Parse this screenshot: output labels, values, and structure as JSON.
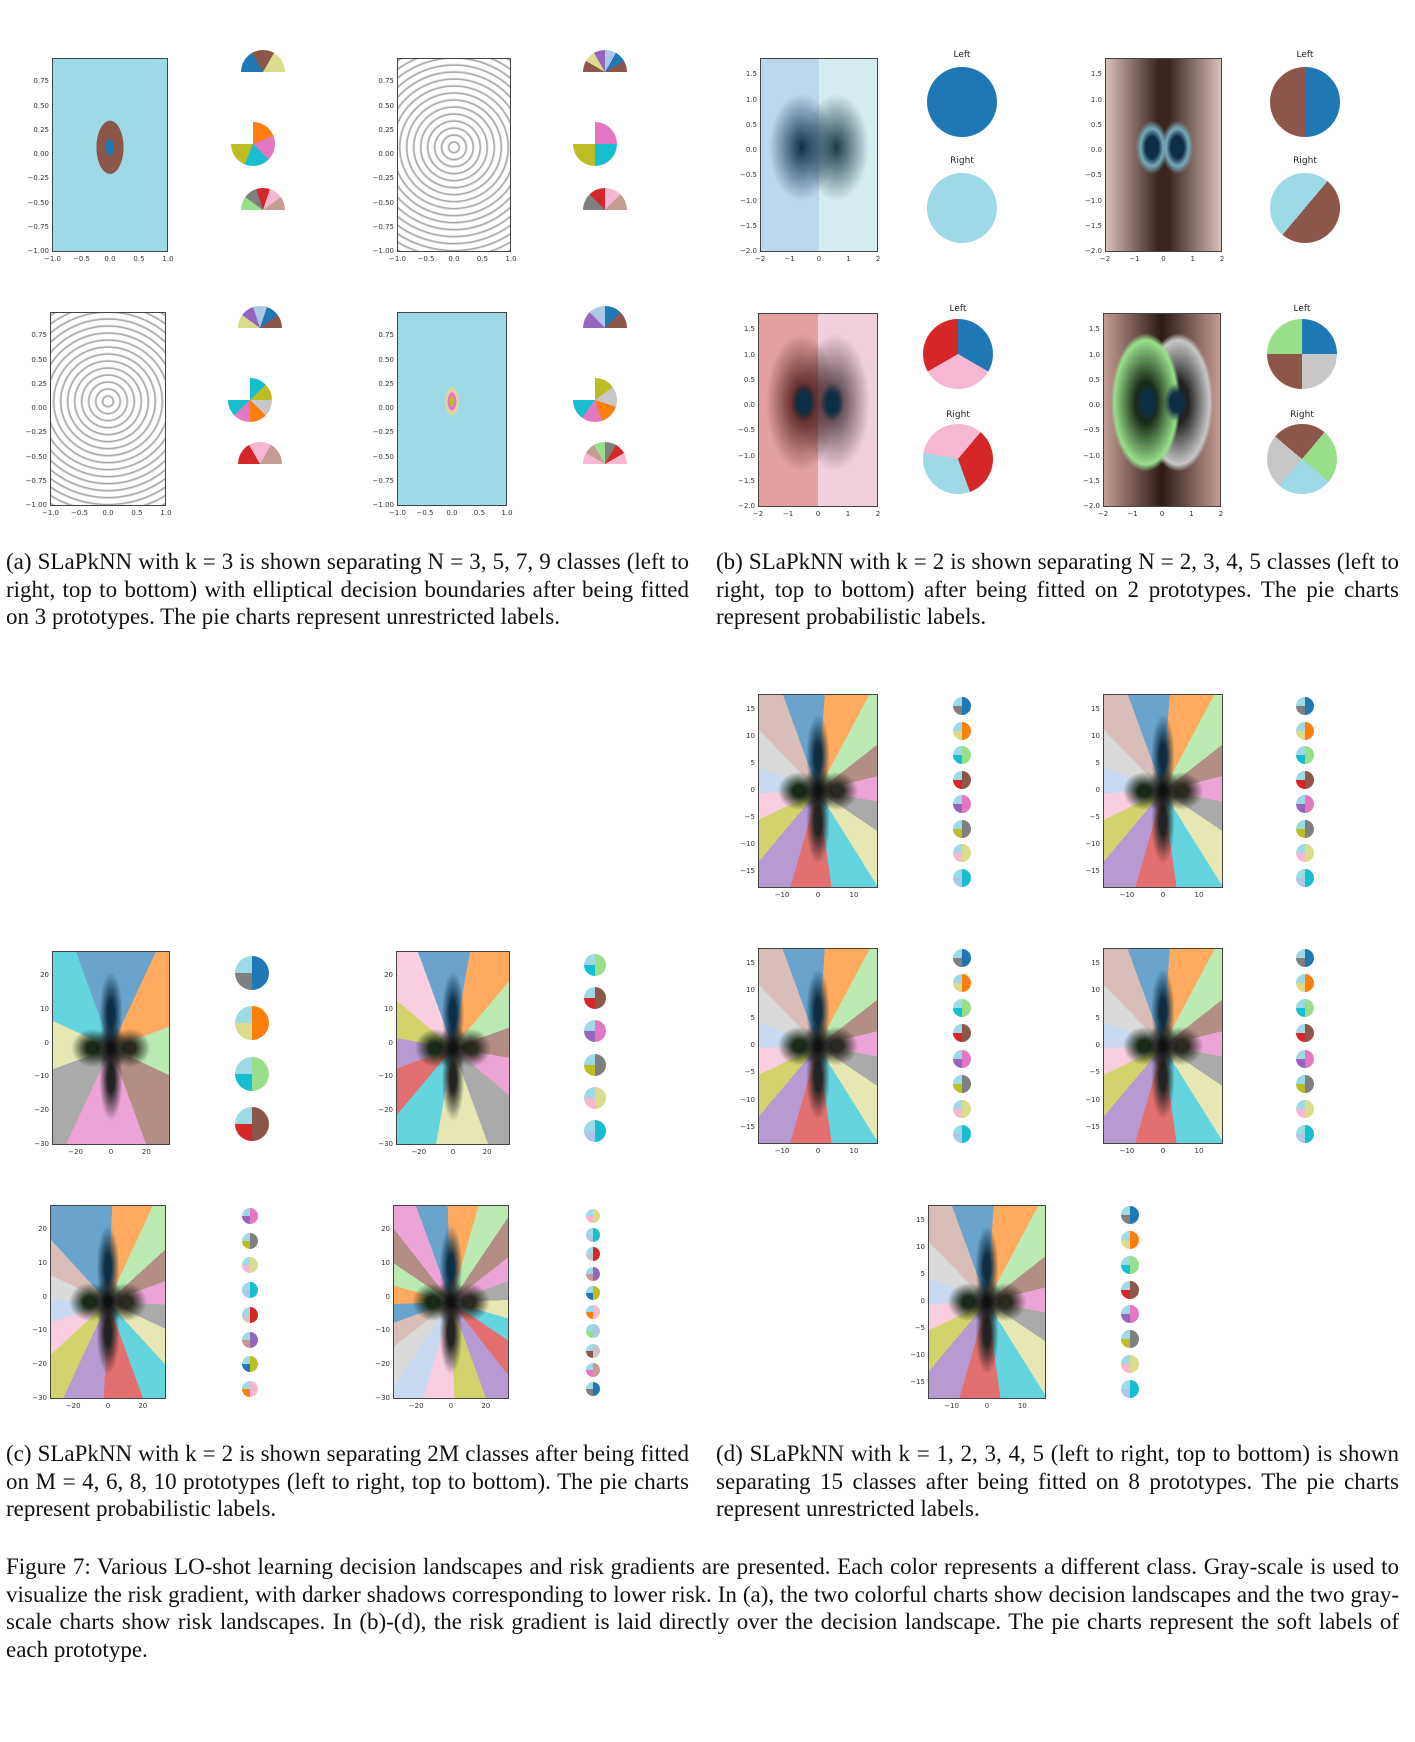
{
  "panels": [
    {
      "caption": "(a) SLaPkNN with k = 3 is shown separating N = 3, 5, 7, 9 classes (left to right, top to bottom) with elliptical decision boundaries after being fitted on 3 prototypes. The pie charts represent unrestricted labels.",
      "xticks": [
        "−1.0",
        "−0.5",
        "0.0",
        "0.5",
        "1.0"
      ],
      "yticks": [
        "0.75",
        "0.50",
        "0.25",
        "0.00",
        "−0.25",
        "−0.50",
        "−0.75",
        "−1.00"
      ]
    },
    {
      "caption": "(b) SLaPkNN with k = 2 is shown separating N = 2, 3, 4, 5 classes (left to right, top to bottom) after being fitted on 2 prototypes. The pie charts represent probabilistic labels.",
      "xticks": [
        "−2",
        "−1",
        "0",
        "1",
        "2"
      ],
      "yticks": [
        "1.5",
        "1.0",
        "0.5",
        "0.0",
        "−0.5",
        "−1.0",
        "−1.5",
        "−2.0"
      ],
      "pie_titles": [
        "Left",
        "Right"
      ]
    },
    {
      "caption": "(c) SLaPkNN with k = 2 is shown separating 2M classes after being fitted on M = 4, 6, 8, 10 prototypes (left to right, top to bottom). The pie charts represent probabilistic labels.",
      "xticks": [
        "−20",
        "0",
        "20"
      ],
      "yticks": [
        "20",
        "10",
        "0",
        "−10",
        "−20",
        "−30"
      ]
    },
    {
      "caption": "(d) SLaPkNN with k = 1, 2, 3, 4, 5 (left to right, top to bottom) is shown separating 15 classes after being fitted on 8 prototypes. The pie charts represent unrestricted labels.",
      "xticks": [
        "−10",
        "0",
        "10"
      ],
      "yticks": [
        "15",
        "10",
        "5",
        "0",
        "−5",
        "−10",
        "−15"
      ]
    }
  ],
  "figure_caption": "Figure 7: Various LO-shot learning decision landscapes and risk gradients are presented. Each color represents a different class. Gray-scale is used to visualize the risk gradient, with darker shadows corresponding to lower risk. In (a), the two colorful charts show decision landscapes and the two gray-scale charts show risk landscapes. In (b)-(d), the risk gradient is laid directly over the decision landscape. The pie charts represent the soft labels of each prototype."
}
